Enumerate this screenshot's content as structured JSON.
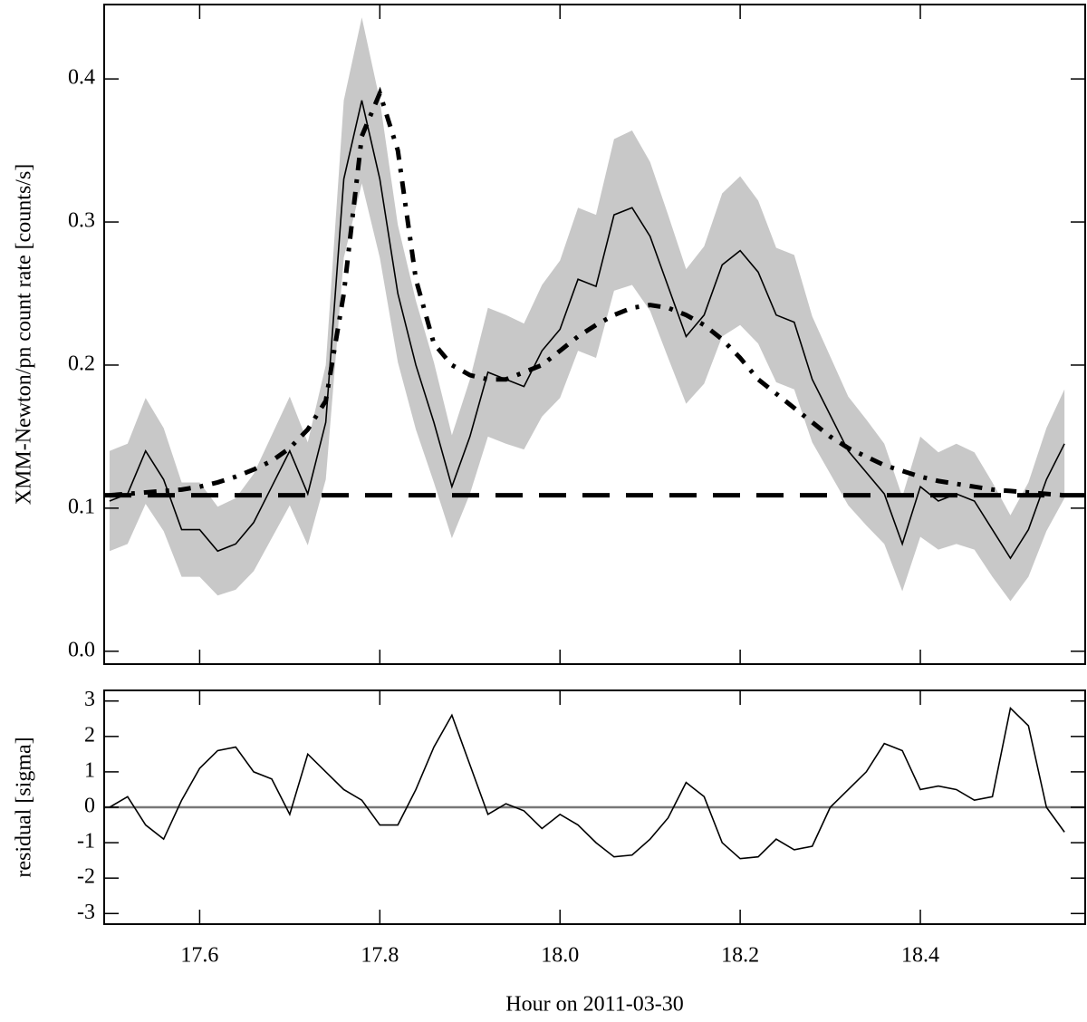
{
  "chart_data": [
    {
      "type": "line",
      "ylabel": "XMM-Newton/pn count rate [counts/s]",
      "xlim": [
        17.494,
        18.583
      ],
      "ylim": [
        -0.009,
        0.452
      ],
      "xticks": [
        17.6,
        17.8,
        {
          "value": 18,
          "label": "18.0"
        },
        18.2,
        18.4
      ],
      "yticks": [
        {
          "value": 0,
          "label": "0.0"
        },
        0.1,
        0.2,
        0.3,
        0.4
      ],
      "x": [
        17.5,
        17.52,
        17.54,
        17.56,
        17.58,
        17.6,
        17.62,
        17.64,
        17.66,
        17.68,
        17.7,
        17.72,
        17.74,
        17.76,
        17.78,
        17.8,
        17.82,
        17.84,
        17.86,
        17.88,
        17.9,
        17.92,
        17.94,
        17.96,
        17.98,
        18.0,
        18.02,
        18.04,
        18.06,
        18.08,
        18.1,
        18.12,
        18.14,
        18.16,
        18.18,
        18.2,
        18.22,
        18.24,
        18.26,
        18.28,
        18.3,
        18.32,
        18.34,
        18.36,
        18.38,
        18.4,
        18.42,
        18.44,
        18.46,
        18.48,
        18.5,
        18.52,
        18.54,
        18.56
      ],
      "band_color": "#c8c8c8",
      "hline": 0.109,
      "hline_style": "dashed",
      "series": [
        {
          "style": "solid",
          "color": "#000000",
          "values": [
            0.105,
            0.11,
            0.14,
            0.12,
            0.085,
            0.085,
            0.07,
            0.075,
            0.09,
            0.115,
            0.14,
            0.11,
            0.16,
            0.33,
            0.385,
            0.33,
            0.25,
            0.2,
            0.16,
            0.115,
            0.15,
            0.195,
            0.19,
            0.185,
            0.21,
            0.225,
            0.26,
            0.255,
            0.305,
            0.31,
            0.29,
            0.255,
            0.22,
            0.235,
            0.27,
            0.28,
            0.265,
            0.235,
            0.23,
            0.19,
            0.165,
            0.14,
            0.125,
            0.11,
            0.075,
            0.115,
            0.105,
            0.11,
            0.105,
            0.085,
            0.065,
            0.085,
            0.12,
            0.145
          ],
          "errors": [
            0.035,
            0.035,
            0.037,
            0.036,
            0.033,
            0.033,
            0.031,
            0.032,
            0.034,
            0.036,
            0.038,
            0.036,
            0.04,
            0.055,
            0.058,
            0.055,
            0.048,
            0.045,
            0.042,
            0.036,
            0.04,
            0.045,
            0.045,
            0.044,
            0.046,
            0.048,
            0.05,
            0.05,
            0.053,
            0.054,
            0.052,
            0.05,
            0.047,
            0.048,
            0.05,
            0.052,
            0.05,
            0.047,
            0.047,
            0.044,
            0.041,
            0.038,
            0.037,
            0.035,
            0.033,
            0.035,
            0.034,
            0.035,
            0.034,
            0.033,
            0.03,
            0.033,
            0.036,
            0.038
          ]
        },
        {
          "style": "dashdot",
          "color": "#000000",
          "values": [
            0.109,
            0.11,
            0.111,
            0.112,
            0.113,
            0.115,
            0.118,
            0.122,
            0.127,
            0.133,
            0.142,
            0.155,
            0.175,
            0.25,
            0.36,
            0.39,
            0.35,
            0.26,
            0.215,
            0.2,
            0.193,
            0.19,
            0.19,
            0.195,
            0.2,
            0.21,
            0.22,
            0.228,
            0.235,
            0.24,
            0.242,
            0.24,
            0.235,
            0.228,
            0.218,
            0.205,
            0.19,
            0.18,
            0.17,
            0.16,
            0.15,
            0.142,
            0.136,
            0.13,
            0.126,
            0.122,
            0.119,
            0.117,
            0.115,
            0.113,
            0.112,
            0.111,
            0.11,
            0.109
          ]
        }
      ]
    },
    {
      "type": "line",
      "ylabel": "residual [sigma]",
      "xlabel": "Hour on 2011-03-30",
      "xlim": [
        17.494,
        18.583
      ],
      "ylim": [
        -3.3,
        3.3
      ],
      "xticks": [
        17.6,
        17.8,
        {
          "value": 18,
          "label": "18.0"
        },
        18.2,
        18.4
      ],
      "yticks": [
        -3,
        -2,
        -1,
        0,
        1,
        2,
        3
      ],
      "x": [
        17.5,
        17.52,
        17.54,
        17.56,
        17.58,
        17.6,
        17.62,
        17.64,
        17.66,
        17.68,
        17.7,
        17.72,
        17.74,
        17.76,
        17.78,
        17.8,
        17.82,
        17.84,
        17.86,
        17.88,
        17.9,
        17.92,
        17.94,
        17.96,
        17.98,
        18.0,
        18.02,
        18.04,
        18.06,
        18.08,
        18.1,
        18.12,
        18.14,
        18.16,
        18.18,
        18.2,
        18.22,
        18.24,
        18.26,
        18.28,
        18.3,
        18.32,
        18.34,
        18.36,
        18.38,
        18.4,
        18.42,
        18.44,
        18.46,
        18.48,
        18.5,
        18.52,
        18.54,
        18.56
      ],
      "hline": 0,
      "hline_style": "gray",
      "series": [
        {
          "style": "solid",
          "color": "#000000",
          "values": [
            0,
            0.3,
            -0.5,
            -0.9,
            0.2,
            1.1,
            1.6,
            1.7,
            1.0,
            0.8,
            -0.2,
            1.5,
            1.0,
            0.5,
            0.2,
            -0.5,
            -0.5,
            0.5,
            1.7,
            2.6,
            1.2,
            -0.2,
            0.1,
            -0.1,
            -0.6,
            -0.2,
            -0.5,
            -1.0,
            -1.4,
            -1.35,
            -0.9,
            -0.3,
            0.7,
            0.3,
            -1.0,
            -1.45,
            -1.4,
            -0.9,
            -1.2,
            -1.1,
            0.0,
            0.5,
            1.0,
            1.8,
            1.6,
            0.5,
            0.6,
            0.5,
            0.2,
            0.3,
            2.8,
            2.3,
            0.0,
            -0.7
          ]
        }
      ]
    }
  ]
}
